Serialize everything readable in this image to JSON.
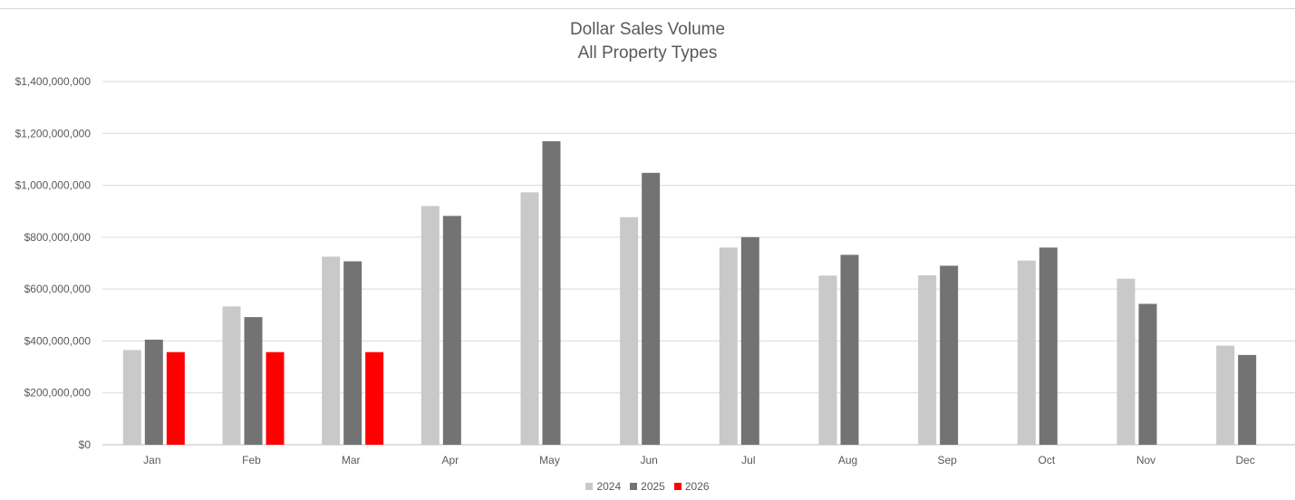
{
  "chart_data": {
    "type": "bar",
    "title": "Dollar Sales Volume",
    "subtitle": "All Property Types",
    "xlabel": "",
    "ylabel": "",
    "ylim": [
      0,
      1400000000
    ],
    "y_ticks": [
      0,
      200000000,
      400000000,
      600000000,
      800000000,
      1000000000,
      1200000000,
      1400000000
    ],
    "y_tick_labels": [
      "$0",
      "$200,000,000",
      "$400,000,000",
      "$600,000,000",
      "$800,000,000",
      "$1,000,000,000",
      "$1,200,000,000",
      "$1,400,000,000"
    ],
    "grid": true,
    "legend_position": "bottom",
    "categories": [
      "Jan",
      "Feb",
      "Mar",
      "Apr",
      "May",
      "Jun",
      "Jul",
      "Aug",
      "Sep",
      "Oct",
      "Nov",
      "Dec"
    ],
    "series": [
      {
        "name": "2024",
        "color": "#c9c9c9",
        "values": [
          365000000,
          533000000,
          725000000,
          920000000,
          973000000,
          877000000,
          760000000,
          652000000,
          653000000,
          710000000,
          640000000,
          382000000
        ]
      },
      {
        "name": "2025",
        "color": "#737373",
        "values": [
          405000000,
          492000000,
          707000000,
          882000000,
          1170000000,
          1048000000,
          800000000,
          732000000,
          690000000,
          760000000,
          543000000,
          346000000
        ]
      },
      {
        "name": "2026",
        "color": "#ff0000",
        "values": [
          357000000,
          357000000,
          357000000,
          null,
          null,
          null,
          null,
          null,
          null,
          null,
          null,
          null
        ]
      }
    ]
  }
}
